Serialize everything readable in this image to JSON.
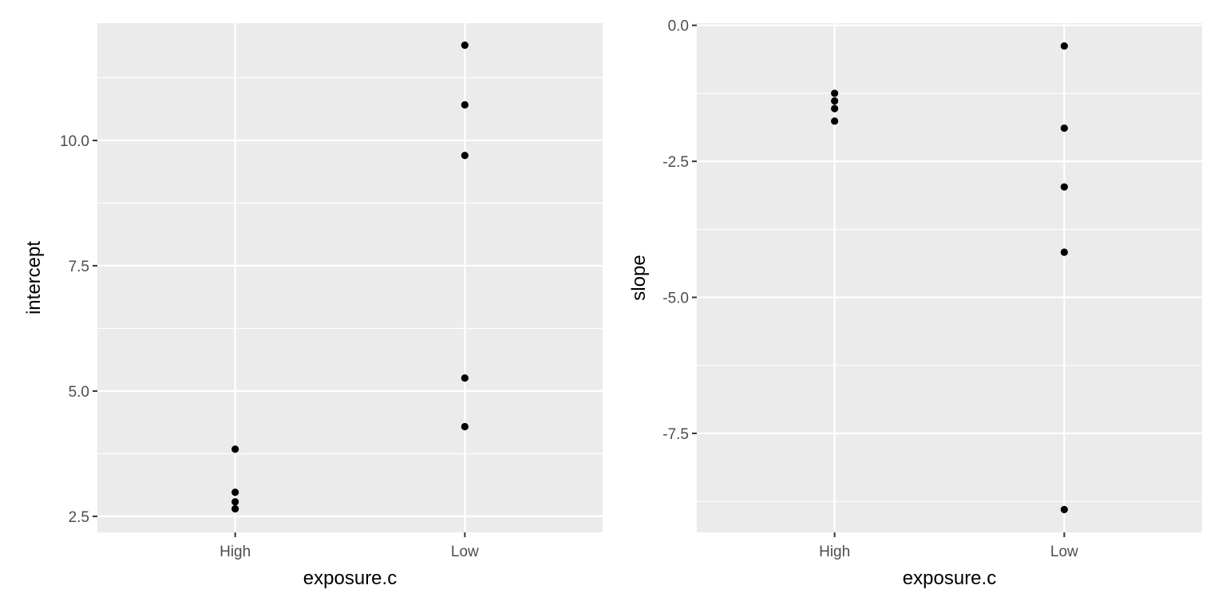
{
  "chart_data": [
    {
      "type": "scatter",
      "title": "",
      "xlabel": "exposure.c",
      "ylabel": "intercept",
      "categories": [
        "High",
        "Low"
      ],
      "yticks": [
        2.5,
        5.0,
        7.5,
        10.0
      ],
      "ytick_labels": [
        "2.5",
        "5.0",
        "7.5",
        "10.0"
      ],
      "ylim": [
        2.18,
        12.34
      ],
      "grid": true,
      "series": [
        {
          "name": "High",
          "x": "High",
          "values": [
            3.84,
            2.98,
            2.79,
            2.65
          ]
        },
        {
          "name": "Low",
          "x": "Low",
          "values": [
            11.9,
            10.71,
            9.7,
            5.26,
            4.29
          ]
        }
      ]
    },
    {
      "type": "scatter",
      "title": "",
      "xlabel": "exposure.c",
      "ylabel": "slope",
      "categories": [
        "High",
        "Low"
      ],
      "yticks": [
        0.0,
        -2.5,
        -5.0,
        -7.5
      ],
      "ytick_labels": [
        "0.0",
        "-2.5",
        "-5.0",
        "-7.5"
      ],
      "ylim": [
        -9.32,
        0.04
      ],
      "grid": true,
      "series": [
        {
          "name": "High",
          "x": "High",
          "values": [
            -1.25,
            -1.39,
            -1.53,
            -1.76
          ]
        },
        {
          "name": "Low",
          "x": "Low",
          "values": [
            -0.38,
            -1.89,
            -2.97,
            -4.17,
            -8.9
          ]
        }
      ]
    }
  ],
  "colors": {
    "panel_bg": "#ebebeb",
    "grid": "#ffffff",
    "point": "#000000",
    "tick_text": "#4d4d4d",
    "title_text": "#000000"
  }
}
